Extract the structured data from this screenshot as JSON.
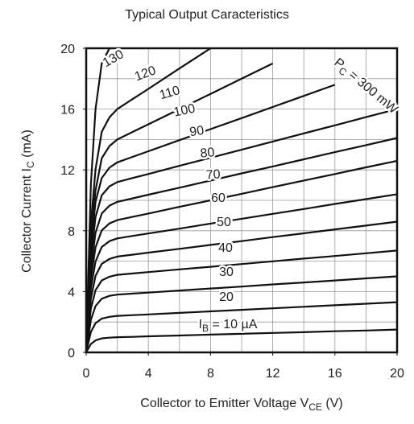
{
  "chart_data": {
    "type": "line",
    "title": "Typical Output Caracteristics",
    "x_label": {
      "text": "Collector to Emitter Voltage  V",
      "sub": "CE",
      "rest": "  (V)"
    },
    "y_label": {
      "text": "Collector Current  I",
      "sub": "C",
      "rest": "  (mA)"
    },
    "annotation": {
      "text": "P",
      "sub": "C",
      "rest": " = 300 mW"
    },
    "xlim": [
      0,
      20
    ],
    "ylim": [
      0,
      20
    ],
    "xticks": [
      0,
      4,
      8,
      12,
      16,
      20
    ],
    "yticks": [
      0,
      4,
      8,
      12,
      16,
      20
    ],
    "xgrid": [
      2,
      4,
      6,
      8,
      10,
      12,
      14,
      16,
      18
    ],
    "ygrid": [
      2,
      4,
      6,
      8,
      10,
      12,
      14,
      16,
      18
    ],
    "grid": true,
    "color": "#111111",
    "x": [
      0,
      0.3,
      0.6,
      1,
      1.5,
      2,
      3,
      4,
      6,
      8,
      10,
      12,
      14,
      16,
      18,
      20
    ],
    "series": [
      {
        "label": {
          "text": "I",
          "sub": "B",
          "rest": " = 10 µA"
        },
        "values": [
          0,
          0.55,
          0.79,
          0.92,
          0.97,
          1.0,
          1.02,
          1.06,
          1.11,
          1.17,
          1.22,
          1.28,
          1.33,
          1.39,
          1.44,
          1.5
        ]
      },
      {
        "name": "20",
        "values": [
          0,
          1.34,
          1.92,
          2.22,
          2.34,
          2.4,
          2.45,
          2.5,
          2.6,
          2.7,
          2.8,
          2.9,
          3.0,
          3.1,
          3.2,
          3.3
        ]
      },
      {
        "name": "30",
        "values": [
          0,
          2.13,
          3.05,
          3.53,
          3.72,
          3.8,
          3.87,
          3.93,
          4.07,
          4.2,
          4.33,
          4.47,
          4.6,
          4.73,
          4.87,
          5.0
        ]
      },
      {
        "name": "40",
        "values": [
          0,
          2.86,
          4.09,
          4.73,
          4.98,
          5.1,
          5.19,
          5.28,
          5.46,
          5.63,
          5.81,
          5.99,
          6.17,
          6.34,
          6.52,
          6.7
        ]
      },
      {
        "name": "50",
        "values": [
          0,
          3.52,
          5.03,
          5.82,
          6.15,
          6.3,
          6.43,
          6.56,
          6.81,
          7.07,
          7.32,
          7.58,
          7.83,
          8.09,
          8.34,
          8.6
        ]
      },
      {
        "name": "60",
        "values": [
          0,
          4.18,
          5.98,
          6.93,
          7.32,
          7.5,
          7.66,
          7.82,
          8.14,
          8.47,
          8.79,
          9.11,
          9.43,
          9.76,
          10.08,
          10.4
        ]
      },
      {
        "name": "70",
        "values": [
          0,
          4.83,
          6.91,
          8.02,
          8.48,
          8.7,
          8.92,
          9.13,
          9.57,
          10.0,
          10.43,
          10.87,
          11.3,
          11.73,
          12.17,
          12.6
        ]
      },
      {
        "name": "80",
        "values": [
          0,
          5.5,
          7.87,
          9.13,
          9.65,
          9.9,
          10.13,
          10.37,
          10.83,
          11.3,
          11.77,
          12.23,
          12.7,
          13.17,
          13.63,
          14.1
        ]
      },
      {
        "name": "90",
        "values": [
          0,
          6.2,
          8.9,
          10.33,
          10.92,
          11.2,
          11.47,
          11.73,
          12.27,
          12.8,
          13.33,
          13.87,
          14.4,
          14.93,
          15.47,
          16.0
        ]
      },
      {
        "name": "100",
        "values": [
          0,
          6.9,
          9.9,
          11.46,
          12.15,
          12.5,
          12.86,
          13.23,
          13.96,
          14.68,
          15.41,
          16.14,
          16.87,
          17.6,
          null,
          null
        ]
      },
      {
        "name": "110",
        "values": [
          0,
          7.49,
          10.66,
          12.76,
          13.57,
          14.0,
          14.5,
          15.0,
          16.0,
          17.0,
          18.0,
          19.0,
          null,
          null,
          null,
          null
        ]
      },
      {
        "name": "120",
        "values": [
          0,
          8.45,
          12.03,
          14.5,
          15.46,
          16.0,
          16.67,
          17.33,
          18.67,
          20.0,
          null,
          null,
          null,
          null,
          null,
          null
        ]
      },
      {
        "name": "130",
        "values": [
          0,
          11,
          16,
          19,
          20,
          null,
          null,
          null,
          null,
          null,
          null,
          null,
          null,
          null,
          null,
          null
        ]
      }
    ]
  }
}
